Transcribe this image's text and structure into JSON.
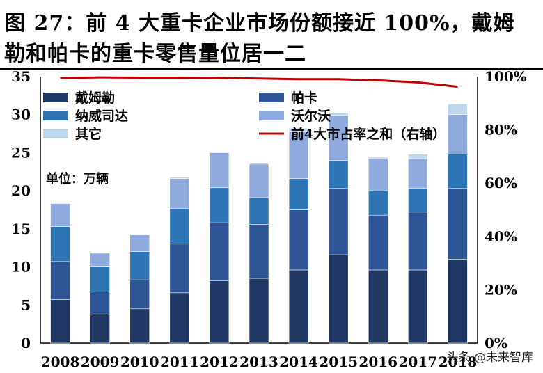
{
  "title": {
    "line1": "图 27：前 4 大重卡企业市场份额接近 100%，戴姆",
    "line2": "勒和帕卡的重卡零售量位居一二"
  },
  "unit_label": "单位：万辆",
  "watermark": "头条 @未来智库",
  "chart_data": {
    "type": "bar",
    "stacked": true,
    "categories": [
      "2008",
      "2009",
      "2010",
      "2011",
      "2012",
      "2013",
      "2014",
      "2015",
      "2016",
      "2017",
      "2018"
    ],
    "series": [
      {
        "name": "戴姆勒",
        "color": "#1f3864",
        "values": [
          5.7,
          3.7,
          4.5,
          6.6,
          8.2,
          8.5,
          9.6,
          11.6,
          9.6,
          9.6,
          11.0
        ]
      },
      {
        "name": "帕卡",
        "color": "#2f5597",
        "values": [
          5.0,
          3.0,
          3.8,
          6.4,
          7.6,
          7.1,
          7.9,
          8.7,
          7.2,
          7.6,
          9.3
        ]
      },
      {
        "name": "纳威司达",
        "color": "#2e75b6",
        "values": [
          4.6,
          3.4,
          3.7,
          4.7,
          4.6,
          3.5,
          4.1,
          3.7,
          3.2,
          3.1,
          4.5
        ]
      },
      {
        "name": "沃尔沃",
        "color": "#8faadc",
        "values": [
          3.0,
          1.7,
          2.2,
          3.9,
          4.6,
          4.4,
          6.2,
          5.9,
          4.2,
          3.9,
          5.2
        ]
      },
      {
        "name": "其它",
        "color": "#bdd7ee",
        "values": [
          0.2,
          0.1,
          0.1,
          0.2,
          0.1,
          0.2,
          0.4,
          0.3,
          0.2,
          0.6,
          1.4
        ]
      }
    ],
    "line_series": {
      "name": "前4大市占率之和（右轴）",
      "color": "#c00000",
      "values": [
        99.5,
        99.7,
        99.6,
        99.6,
        99.5,
        99.3,
        99.0,
        99.0,
        98.6,
        97.8,
        96.2
      ]
    },
    "ylim": [
      0,
      35
    ],
    "yticks": [
      "0",
      "5",
      "10",
      "15",
      "20",
      "25",
      "30",
      "35"
    ],
    "y2lim": [
      0,
      100
    ],
    "y2ticks": [
      "0%",
      "20%",
      "40%",
      "60%",
      "80%",
      "100%"
    ],
    "legend_position": "top-left"
  }
}
